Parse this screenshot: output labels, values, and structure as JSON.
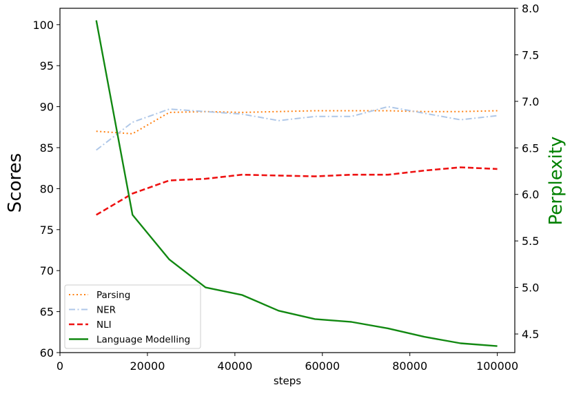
{
  "chart_data": {
    "type": "line",
    "xlabel": "steps",
    "ylabel": "Scores",
    "ylabel_right": "Perplexity",
    "ylabel_right_color": "#008000",
    "xlim": [
      0,
      104000
    ],
    "ylim": [
      60,
      102
    ],
    "ylim_right": [
      4.3,
      8.0
    ],
    "x_ticks": [
      0,
      20000,
      40000,
      60000,
      80000,
      100000
    ],
    "x_tick_labels": [
      "0",
      "20000",
      "40000",
      "60000",
      "80000",
      "100000"
    ],
    "y_ticks": [
      60,
      65,
      70,
      75,
      80,
      85,
      90,
      95,
      100
    ],
    "y_tick_labels": [
      "60",
      "65",
      "70",
      "75",
      "80",
      "85",
      "90",
      "95",
      "100"
    ],
    "y_right_ticks": [
      4.5,
      5.0,
      5.5,
      6.0,
      6.5,
      7.0,
      7.5,
      8.0
    ],
    "y_right_tick_labels": [
      "4.5",
      "5.0",
      "5.5",
      "6.0",
      "6.5",
      "7.0",
      "7.5",
      "8.0"
    ],
    "grid": false,
    "legend_position": "bottom-left",
    "x": [
      8300,
      16600,
      25000,
      33300,
      41600,
      50000,
      58300,
      66600,
      75000,
      83300,
      91600,
      100000
    ],
    "series": [
      {
        "name": "Parsing",
        "axis": "left",
        "style": "dotted",
        "color": "#ff7f0e",
        "values": [
          87.0,
          86.7,
          89.3,
          89.4,
          89.3,
          89.4,
          89.5,
          89.5,
          89.5,
          89.4,
          89.4,
          89.5
        ]
      },
      {
        "name": "NER",
        "axis": "left",
        "style": "dashdot",
        "color": "#aec7e8",
        "values": [
          84.7,
          88.1,
          89.7,
          89.4,
          89.1,
          88.3,
          88.8,
          88.8,
          90.0,
          89.2,
          88.4,
          88.9
        ]
      },
      {
        "name": "NLI",
        "axis": "left",
        "style": "dashed",
        "color": "#ee1111",
        "values": [
          76.8,
          79.4,
          81.0,
          81.2,
          81.7,
          81.6,
          81.5,
          81.7,
          81.7,
          82.2,
          82.6,
          82.4
        ]
      },
      {
        "name": "Language Modelling",
        "axis": "right",
        "style": "solid",
        "color": "#118811",
        "values": [
          7.87,
          5.78,
          5.3,
          5.0,
          4.92,
          4.75,
          4.66,
          4.63,
          4.56,
          4.47,
          4.4,
          4.37
        ]
      }
    ]
  }
}
